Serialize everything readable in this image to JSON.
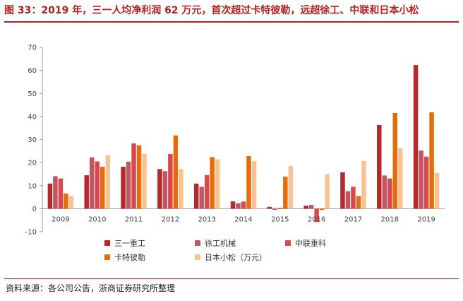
{
  "header": {
    "title": "图 33：2019 年，三一人均净利润 62 万元，首次超过卡特彼勒，远超徐工、中联和日本小松"
  },
  "footer": {
    "source": "资料来源：各公司公告，浙商证券研究所整理"
  },
  "chart_data": {
    "type": "bar",
    "title": "",
    "xlabel": "",
    "ylabel": "",
    "ylim": [
      -10,
      70
    ],
    "yticks": [
      -10,
      0,
      10,
      20,
      30,
      40,
      50,
      60,
      70
    ],
    "grid": false,
    "legend_position": "bottom",
    "categories": [
      "2009",
      "2010",
      "2011",
      "2012",
      "2013",
      "2014",
      "2015",
      "2016",
      "2017",
      "2018",
      "2019"
    ],
    "series": [
      {
        "name": "三一重工",
        "color": "#b22a2a",
        "values": [
          10.9,
          14.5,
          18.2,
          17.2,
          10.9,
          3.2,
          0.8,
          1.3,
          15.8,
          36.3,
          62.3
        ]
      },
      {
        "name": "徐工机械",
        "color": "#c05662",
        "values": [
          14.1,
          22.3,
          20.4,
          16.3,
          9.5,
          2.4,
          -0.5,
          1.6,
          7.6,
          14.4,
          25.2
        ]
      },
      {
        "name": "中联重科",
        "color": "#d9484c",
        "values": [
          13.1,
          20.5,
          28.3,
          23.7,
          14.6,
          3.1,
          0.4,
          -5.8,
          9.5,
          13.1,
          22.6
        ]
      },
      {
        "name": "卡特彼勒",
        "color": "#e46c0a",
        "values": [
          6.6,
          18.2,
          27.5,
          31.8,
          22.4,
          22.8,
          13.9,
          -0.6,
          5.5,
          41.5,
          41.8
        ]
      },
      {
        "name": "日本小松（万元）",
        "color": "#f8c293",
        "values": [
          5.5,
          23.2,
          23.8,
          17.2,
          21.4,
          20.6,
          18.5,
          15.0,
          20.7,
          26.2,
          15.5
        ]
      }
    ]
  }
}
